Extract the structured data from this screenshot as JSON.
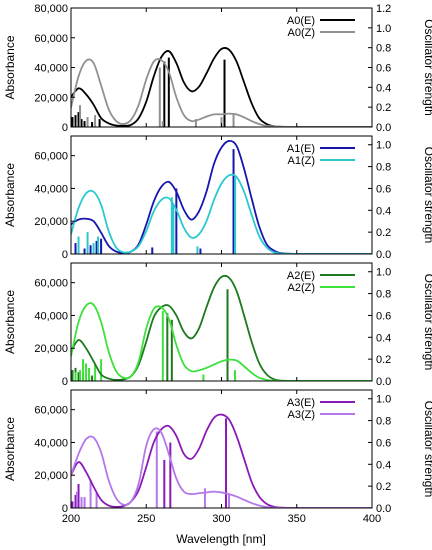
{
  "figure": {
    "xlabel": "Wavelength [nm]"
  },
  "chart_data": [
    {
      "type": "line",
      "ylabel": "Absorbance",
      "ylabel2": "Oscillator strength",
      "xlim": [
        200,
        400
      ],
      "ylim": [
        0,
        80000
      ],
      "y2lim": [
        0,
        1.2
      ],
      "xticks": [
        200,
        250,
        300,
        350,
        400
      ],
      "yticks": [
        0,
        20000,
        40000,
        60000,
        80000
      ],
      "ytick_labels": [
        "0",
        "20,000",
        "40,000",
        "60,000",
        "80,000"
      ],
      "y2ticks": [
        0,
        0.2,
        0.4,
        0.6,
        0.8,
        1.0,
        1.2
      ],
      "y2tick_labels": [
        "0.0",
        "0.2",
        "0.4",
        "0.6",
        "0.8",
        "1.0",
        "1.2"
      ],
      "series": [
        {
          "name": "A0(E)",
          "color": "#000000",
          "x": [
            200,
            205,
            210,
            215,
            220,
            225,
            230,
            235,
            240,
            245,
            250,
            255,
            260,
            265,
            270,
            275,
            280,
            285,
            290,
            295,
            300,
            305,
            310,
            315,
            320,
            325,
            330,
            335,
            340,
            350,
            360,
            380,
            400
          ],
          "y": [
            20000,
            26000,
            22000,
            15000,
            6000,
            2500,
            1000,
            800,
            1500,
            6000,
            17000,
            34000,
            47000,
            51000,
            43000,
            30000,
            24000,
            27000,
            36000,
            46000,
            52500,
            52000,
            44000,
            30000,
            16000,
            6000,
            2000,
            500,
            100,
            0,
            0,
            0,
            0
          ],
          "sticks": [
            {
              "x": 201,
              "f": 0.1
            },
            {
              "x": 203,
              "f": 0.12
            },
            {
              "x": 205,
              "f": 0.15
            },
            {
              "x": 207,
              "f": 0.08
            },
            {
              "x": 209,
              "f": 0.06
            },
            {
              "x": 214,
              "f": 0.05
            },
            {
              "x": 219,
              "f": 0.08
            },
            {
              "x": 262,
              "f": 0.66
            },
            {
              "x": 265,
              "f": 0.7
            },
            {
              "x": 302,
              "f": 0.68
            }
          ]
        },
        {
          "name": "A0(Z)",
          "color": "#909090",
          "x": [
            200,
            205,
            210,
            215,
            220,
            225,
            230,
            235,
            240,
            245,
            250,
            255,
            260,
            265,
            270,
            275,
            280,
            285,
            290,
            295,
            300,
            305,
            310,
            315,
            320,
            325,
            330,
            340,
            350,
            360,
            380,
            400
          ],
          "y": [
            13000,
            34000,
            44500,
            43000,
            28000,
            12000,
            4000,
            2000,
            5000,
            15000,
            32000,
            44000,
            45000,
            37000,
            20000,
            8000,
            4000,
            5000,
            7000,
            8500,
            8500,
            9000,
            8500,
            6500,
            4000,
            2000,
            800,
            200,
            0,
            0,
            0,
            0
          ],
          "sticks": [
            {
              "x": 202,
              "f": 0.05
            },
            {
              "x": 204,
              "f": 0.06
            },
            {
              "x": 206,
              "f": 0.22
            },
            {
              "x": 211,
              "f": 0.1
            },
            {
              "x": 216,
              "f": 0.12
            },
            {
              "x": 259,
              "f": 0.6
            },
            {
              "x": 261,
              "f": 0.06
            },
            {
              "x": 283,
              "f": 0.08
            },
            {
              "x": 300,
              "f": 0.1
            },
            {
              "x": 308,
              "f": 0.14
            }
          ]
        }
      ]
    },
    {
      "type": "line",
      "ylabel": "Absorbance",
      "ylabel2": "Oscillator strength",
      "xlim": [
        200,
        400
      ],
      "ylim": [
        0,
        72000
      ],
      "y2lim": [
        0,
        1.08
      ],
      "xticks": [
        200,
        250,
        300,
        350,
        400
      ],
      "yticks": [
        0,
        20000,
        40000,
        60000
      ],
      "ytick_labels": [
        "0",
        "20,000",
        "40,000",
        "60,000"
      ],
      "y2ticks": [
        0,
        0.2,
        0.4,
        0.6,
        0.8,
        1.0
      ],
      "y2tick_labels": [
        "0.0",
        "0.2",
        "0.4",
        "0.6",
        "0.8",
        "1.0"
      ],
      "series": [
        {
          "name": "A1(E)",
          "color": "#1515b0",
          "x": [
            200,
            205,
            210,
            215,
            220,
            225,
            230,
            235,
            240,
            245,
            250,
            255,
            260,
            265,
            270,
            275,
            280,
            285,
            290,
            295,
            300,
            305,
            310,
            315,
            320,
            325,
            330,
            335,
            340,
            350,
            360,
            380,
            400
          ],
          "y": [
            18000,
            21000,
            21500,
            20000,
            13000,
            5000,
            1500,
            700,
            1500,
            6000,
            18000,
            32000,
            41000,
            44000,
            38000,
            27000,
            21000,
            26000,
            38000,
            55000,
            65000,
            69000,
            66000,
            52000,
            34000,
            17000,
            6000,
            2000,
            500,
            0,
            0,
            0,
            0
          ],
          "sticks": [
            {
              "x": 203,
              "f": 0.1
            },
            {
              "x": 209,
              "f": 0.05
            },
            {
              "x": 213,
              "f": 0.08
            },
            {
              "x": 217,
              "f": 0.12
            },
            {
              "x": 220,
              "f": 0.14
            },
            {
              "x": 254,
              "f": 0.06
            },
            {
              "x": 270,
              "f": 0.6
            },
            {
              "x": 286,
              "f": 0.05
            },
            {
              "x": 308,
              "f": 0.96
            }
          ]
        },
        {
          "name": "A1(Z)",
          "color": "#2ac8cf",
          "x": [
            200,
            205,
            210,
            215,
            220,
            225,
            230,
            235,
            240,
            245,
            250,
            255,
            260,
            265,
            270,
            275,
            280,
            285,
            290,
            295,
            300,
            305,
            310,
            315,
            320,
            325,
            330,
            335,
            340,
            350,
            360,
            380,
            400
          ],
          "y": [
            12000,
            28000,
            37000,
            38000,
            30000,
            14000,
            4000,
            1000,
            1500,
            5000,
            14000,
            26000,
            33000,
            34000,
            27000,
            16000,
            10000,
            12000,
            20000,
            33000,
            43000,
            48000,
            47000,
            38000,
            24000,
            11000,
            4000,
            1000,
            300,
            0,
            0,
            0,
            0
          ],
          "sticks": [
            {
              "x": 205,
              "f": 0.16
            },
            {
              "x": 211,
              "f": 0.2
            },
            {
              "x": 215,
              "f": 0.1
            },
            {
              "x": 218,
              "f": 0.16
            },
            {
              "x": 267,
              "f": 0.52
            },
            {
              "x": 268,
              "f": 0.46
            },
            {
              "x": 284,
              "f": 0.07
            },
            {
              "x": 309,
              "f": 0.7
            }
          ]
        }
      ]
    },
    {
      "type": "line",
      "ylabel": "Absorbance",
      "ylabel2": "Oscillator strength",
      "xlim": [
        200,
        400
      ],
      "ylim": [
        0,
        72000
      ],
      "y2lim": [
        0,
        1.08
      ],
      "xticks": [
        200,
        250,
        300,
        350,
        400
      ],
      "yticks": [
        0,
        20000,
        40000,
        60000
      ],
      "ytick_labels": [
        "0",
        "20,000",
        "40,000",
        "60,000"
      ],
      "y2ticks": [
        0,
        0.2,
        0.4,
        0.6,
        0.8,
        1.0
      ],
      "y2tick_labels": [
        "0.0",
        "0.2",
        "0.4",
        "0.6",
        "0.8",
        "1.0"
      ],
      "series": [
        {
          "name": "A2(E)",
          "color": "#1e7a1e",
          "x": [
            200,
            205,
            210,
            215,
            220,
            225,
            230,
            235,
            240,
            245,
            250,
            255,
            260,
            265,
            270,
            275,
            280,
            285,
            290,
            295,
            300,
            305,
            310,
            315,
            320,
            325,
            330,
            335,
            340,
            350,
            360,
            380,
            400
          ],
          "y": [
            18000,
            25000,
            20000,
            12000,
            4000,
            1500,
            700,
            1000,
            3000,
            10000,
            24000,
            39000,
            45000,
            46000,
            40000,
            30000,
            26000,
            32000,
            45000,
            57000,
            63500,
            63000,
            55000,
            40000,
            24000,
            11000,
            4000,
            1000,
            200,
            0,
            0,
            0,
            0
          ],
          "sticks": [
            {
              "x": 201,
              "f": 0.1
            },
            {
              "x": 203,
              "f": 0.12
            },
            {
              "x": 205,
              "f": 0.08
            },
            {
              "x": 208,
              "f": 0.06
            },
            {
              "x": 214,
              "f": 0.05
            },
            {
              "x": 264,
              "f": 0.62
            },
            {
              "x": 267,
              "f": 0.56
            },
            {
              "x": 304,
              "f": 0.84
            }
          ]
        },
        {
          "name": "A2(Z)",
          "color": "#3de03d",
          "x": [
            200,
            205,
            210,
            215,
            220,
            225,
            230,
            235,
            240,
            245,
            250,
            255,
            260,
            265,
            270,
            275,
            280,
            285,
            290,
            295,
            300,
            305,
            310,
            315,
            320,
            325,
            330,
            335,
            340,
            350,
            360,
            380,
            400
          ],
          "y": [
            15000,
            36000,
            46000,
            46500,
            36000,
            18000,
            6000,
            2000,
            3000,
            12000,
            32000,
            44000,
            45000,
            38000,
            22000,
            10000,
            6000,
            6500,
            8000,
            10000,
            12000,
            13000,
            12500,
            9000,
            5000,
            2000,
            700,
            200,
            0,
            0,
            0,
            0,
            0
          ],
          "sticks": [
            {
              "x": 203,
              "f": 0.08
            },
            {
              "x": 206,
              "f": 0.1
            },
            {
              "x": 208,
              "f": 0.2
            },
            {
              "x": 210,
              "f": 0.16
            },
            {
              "x": 212,
              "f": 0.12
            },
            {
              "x": 216,
              "f": 0.15
            },
            {
              "x": 220,
              "f": 0.2
            },
            {
              "x": 261,
              "f": 0.64
            },
            {
              "x": 288,
              "f": 0.06
            },
            {
              "x": 309,
              "f": 0.1
            }
          ]
        }
      ]
    },
    {
      "type": "line",
      "ylabel": "Absorbance",
      "ylabel2": "Oscillator strength",
      "xlim": [
        200,
        400
      ],
      "ylim": [
        0,
        72000
      ],
      "y2lim": [
        0,
        1.08
      ],
      "xticks": [
        200,
        250,
        300,
        350,
        400
      ],
      "yticks": [
        0,
        20000,
        40000,
        60000
      ],
      "ytick_labels": [
        "0",
        "20,000",
        "40,000",
        "60,000"
      ],
      "y2ticks": [
        0,
        0.2,
        0.4,
        0.6,
        0.8,
        1.0
      ],
      "y2tick_labels": [
        "0.0",
        "0.2",
        "0.4",
        "0.6",
        "0.8",
        "1.0"
      ],
      "series": [
        {
          "name": "A3(E)",
          "color": "#8a1ab5",
          "x": [
            200,
            205,
            210,
            215,
            220,
            225,
            230,
            235,
            240,
            245,
            250,
            255,
            260,
            265,
            270,
            275,
            280,
            285,
            290,
            295,
            300,
            305,
            310,
            315,
            320,
            325,
            330,
            335,
            340,
            350,
            360,
            380,
            400
          ],
          "y": [
            20000,
            28000,
            22000,
            13000,
            5000,
            1500,
            700,
            1200,
            4000,
            11000,
            25000,
            40000,
            48000,
            50000,
            44000,
            33000,
            30000,
            36000,
            47000,
            55000,
            57000,
            54000,
            44000,
            30000,
            16000,
            7000,
            2500,
            700,
            200,
            0,
            0,
            0,
            0
          ],
          "sticks": [
            {
              "x": 201,
              "f": 0.06
            },
            {
              "x": 203,
              "f": 0.12
            },
            {
              "x": 205,
              "f": 0.22
            },
            {
              "x": 209,
              "f": 0.08
            },
            {
              "x": 262,
              "f": 0.44
            },
            {
              "x": 266,
              "f": 0.6
            },
            {
              "x": 303,
              "f": 0.82
            }
          ]
        },
        {
          "name": "A3(Z)",
          "color": "#b478ea",
          "x": [
            200,
            205,
            210,
            215,
            220,
            225,
            230,
            235,
            240,
            245,
            250,
            255,
            260,
            265,
            270,
            275,
            280,
            285,
            290,
            295,
            300,
            305,
            310,
            315,
            320,
            325,
            330,
            335,
            340,
            350,
            360,
            380,
            400
          ],
          "y": [
            20000,
            33000,
            42000,
            43000,
            34000,
            17000,
            6000,
            2000,
            4000,
            15000,
            38000,
            48000,
            46000,
            33000,
            18000,
            10000,
            8500,
            9000,
            9500,
            10000,
            9500,
            8500,
            7000,
            5000,
            3000,
            1500,
            600,
            200,
            0,
            0,
            0,
            0,
            0
          ],
          "sticks": [
            {
              "x": 204,
              "f": 0.15
            },
            {
              "x": 207,
              "f": 0.1
            },
            {
              "x": 209,
              "f": 0.1
            },
            {
              "x": 213,
              "f": 0.26
            },
            {
              "x": 217,
              "f": 0.14
            },
            {
              "x": 257,
              "f": 0.7
            },
            {
              "x": 289,
              "f": 0.18
            },
            {
              "x": 305,
              "f": 0.12
            }
          ]
        }
      ]
    }
  ]
}
